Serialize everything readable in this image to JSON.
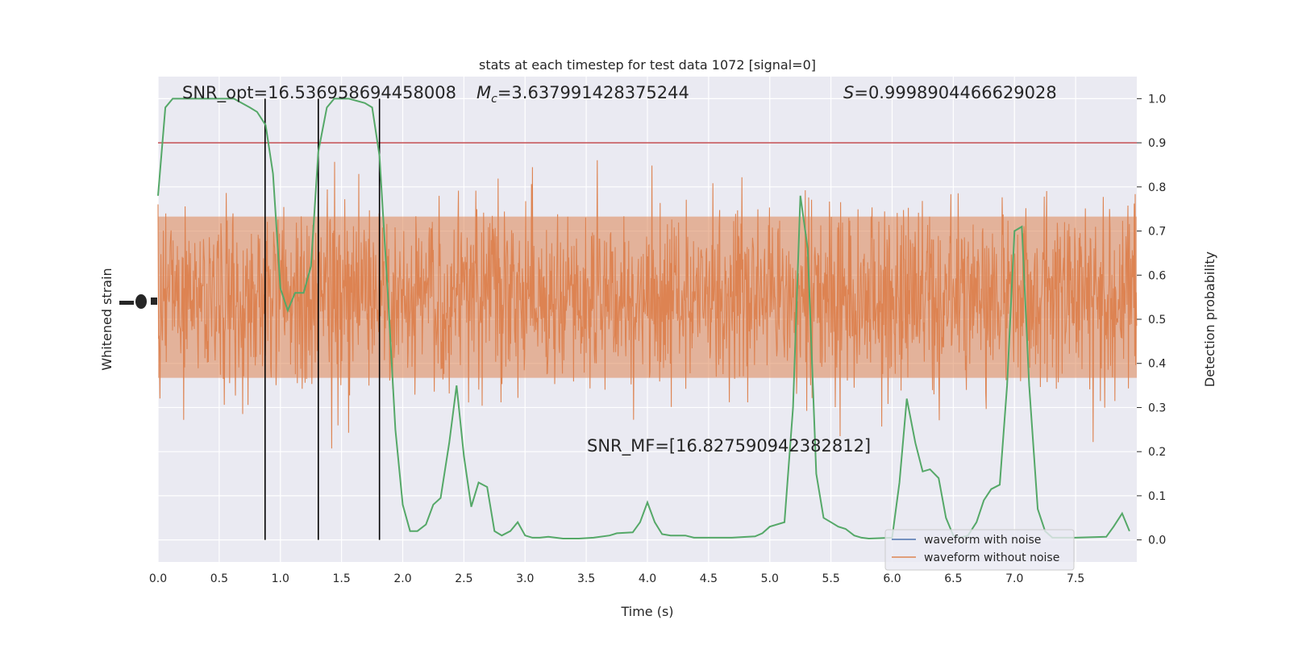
{
  "chart_data": {
    "type": "line",
    "title": "stats at each timestep for test data 1072 [signal=0]",
    "xlabel": "Time (s)",
    "ylabel_left": "Whitened strain",
    "ylabel_right": "Detection probability",
    "xlim": [
      0.0,
      8.0
    ],
    "ylim_right": [
      -0.05,
      1.05
    ],
    "x_ticks": [
      "0.0",
      "0.5",
      "1.0",
      "1.5",
      "2.0",
      "2.5",
      "3.0",
      "3.5",
      "4.0",
      "4.5",
      "5.0",
      "5.5",
      "6.0",
      "6.5",
      "7.0",
      "7.5"
    ],
    "x_tick_values": [
      0.0,
      0.5,
      1.0,
      1.5,
      2.0,
      2.5,
      3.0,
      3.5,
      4.0,
      4.5,
      5.0,
      5.5,
      6.0,
      6.5,
      7.0,
      7.5
    ],
    "y_right_ticks": [
      "0.0",
      "0.1",
      "0.2",
      "0.3",
      "0.4",
      "0.5",
      "0.6",
      "0.7",
      "0.8",
      "0.9",
      "1.0"
    ],
    "y_right_tick_values": [
      0.0,
      0.1,
      0.2,
      0.3,
      0.4,
      0.5,
      0.6,
      0.7,
      0.8,
      0.9,
      1.0
    ],
    "grid": true,
    "legend_position": "lower-right",
    "annotations": {
      "snr_opt": "SNR_opt=16.536958694458008",
      "mc_symbol": "M",
      "mc_sub": "c",
      "mc_value": "=3.637991428375244",
      "s_symbol": "S",
      "s_value": "=0.9998904466629028",
      "snr_mf": "SNR_MF=[16.827590942382812]"
    },
    "threshold": 0.9,
    "vertical_lines_x": [
      0.875,
      1.31,
      1.81
    ],
    "series": [
      {
        "name": "waveform with noise",
        "color": "#4c72b0"
      },
      {
        "name": "waveform without noise",
        "color": "#dd8452"
      }
    ],
    "detection_probability": {
      "color": "#55a868",
      "points": [
        [
          0.0,
          0.78
        ],
        [
          0.06,
          0.98
        ],
        [
          0.12,
          1.0
        ],
        [
          0.25,
          1.0
        ],
        [
          0.5,
          1.0
        ],
        [
          0.62,
          1.0
        ],
        [
          0.75,
          0.98
        ],
        [
          0.81,
          0.97
        ],
        [
          0.88,
          0.94
        ],
        [
          0.94,
          0.83
        ],
        [
          1.0,
          0.57
        ],
        [
          1.06,
          0.52
        ],
        [
          1.12,
          0.56
        ],
        [
          1.19,
          0.56
        ],
        [
          1.25,
          0.62
        ],
        [
          1.31,
          0.88
        ],
        [
          1.38,
          0.98
        ],
        [
          1.44,
          1.0
        ],
        [
          1.56,
          1.0
        ],
        [
          1.69,
          0.99
        ],
        [
          1.75,
          0.98
        ],
        [
          1.81,
          0.87
        ],
        [
          1.88,
          0.55
        ],
        [
          1.94,
          0.25
        ],
        [
          2.0,
          0.08
        ],
        [
          2.06,
          0.02
        ],
        [
          2.12,
          0.02
        ],
        [
          2.19,
          0.035
        ],
        [
          2.25,
          0.08
        ],
        [
          2.31,
          0.095
        ],
        [
          2.38,
          0.22
        ],
        [
          2.44,
          0.35
        ],
        [
          2.5,
          0.19
        ],
        [
          2.56,
          0.075
        ],
        [
          2.62,
          0.13
        ],
        [
          2.69,
          0.12
        ],
        [
          2.75,
          0.02
        ],
        [
          2.81,
          0.01
        ],
        [
          2.88,
          0.02
        ],
        [
          2.94,
          0.04
        ],
        [
          3.0,
          0.01
        ],
        [
          3.06,
          0.005
        ],
        [
          3.12,
          0.005
        ],
        [
          3.19,
          0.007
        ],
        [
          3.25,
          0.005
        ],
        [
          3.31,
          0.003
        ],
        [
          3.44,
          0.003
        ],
        [
          3.56,
          0.005
        ],
        [
          3.69,
          0.01
        ],
        [
          3.75,
          0.015
        ],
        [
          3.88,
          0.017
        ],
        [
          3.94,
          0.04
        ],
        [
          4.0,
          0.085
        ],
        [
          4.06,
          0.04
        ],
        [
          4.12,
          0.013
        ],
        [
          4.19,
          0.01
        ],
        [
          4.31,
          0.01
        ],
        [
          4.38,
          0.005
        ],
        [
          4.5,
          0.005
        ],
        [
          4.69,
          0.005
        ],
        [
          4.88,
          0.008
        ],
        [
          4.94,
          0.015
        ],
        [
          5.0,
          0.03
        ],
        [
          5.12,
          0.04
        ],
        [
          5.19,
          0.3
        ],
        [
          5.25,
          0.78
        ],
        [
          5.31,
          0.66
        ],
        [
          5.38,
          0.15
        ],
        [
          5.44,
          0.05
        ],
        [
          5.5,
          0.04
        ],
        [
          5.56,
          0.03
        ],
        [
          5.62,
          0.025
        ],
        [
          5.69,
          0.01
        ],
        [
          5.75,
          0.005
        ],
        [
          5.81,
          0.003
        ],
        [
          6.0,
          0.005
        ],
        [
          6.06,
          0.13
        ],
        [
          6.12,
          0.32
        ],
        [
          6.19,
          0.22
        ],
        [
          6.25,
          0.155
        ],
        [
          6.31,
          0.16
        ],
        [
          6.38,
          0.14
        ],
        [
          6.44,
          0.05
        ],
        [
          6.5,
          0.01
        ],
        [
          6.56,
          0.005
        ],
        [
          6.62,
          0.01
        ],
        [
          6.69,
          0.04
        ],
        [
          6.75,
          0.09
        ],
        [
          6.81,
          0.115
        ],
        [
          6.88,
          0.125
        ],
        [
          6.94,
          0.35
        ],
        [
          7.0,
          0.7
        ],
        [
          7.06,
          0.71
        ],
        [
          7.12,
          0.35
        ],
        [
          7.19,
          0.07
        ],
        [
          7.25,
          0.02
        ],
        [
          7.31,
          0.005
        ],
        [
          7.5,
          0.005
        ],
        [
          7.75,
          0.007
        ],
        [
          7.81,
          0.03
        ],
        [
          7.88,
          0.06
        ],
        [
          7.94,
          0.02
        ]
      ]
    }
  }
}
